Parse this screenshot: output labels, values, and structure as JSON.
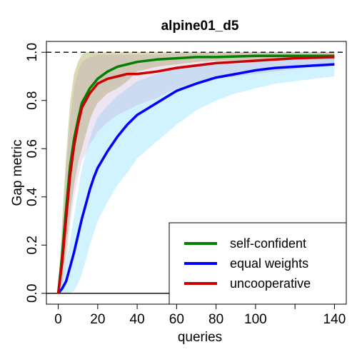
{
  "chart_data": {
    "type": "line",
    "title": "alpine01_d5",
    "xlabel": "queries",
    "ylabel": "Gap metric",
    "xlim": [
      -6,
      146
    ],
    "ylim": [
      -0.045,
      1.045
    ],
    "x_ticks": [
      0,
      20,
      40,
      60,
      80,
      100,
      140
    ],
    "x_tick_labels": [
      "0",
      "20",
      "40",
      "60",
      "80",
      "100",
      "140"
    ],
    "x_extra_tick_marks": [
      120
    ],
    "y_ticks": [
      0.0,
      0.2,
      0.4,
      0.6,
      0.8,
      1.0
    ],
    "y_tick_labels": [
      "0.0",
      "0.2",
      "0.4",
      "0.6",
      "0.8",
      "1.0"
    ],
    "reference_lines": [
      {
        "y": 1.0,
        "style": "dashed",
        "color": "#000000"
      },
      {
        "y": 0.0,
        "style": "solid",
        "color": "#000000"
      }
    ],
    "legend_position": "bottom-right",
    "series": [
      {
        "name": "self-confident",
        "color": "#008000",
        "band_color": "#808000",
        "band_opacity": 0.3,
        "x": [
          0,
          2,
          4,
          6,
          8,
          10,
          12,
          14,
          16,
          18,
          20,
          25,
          30,
          35,
          40,
          50,
          60,
          70,
          80,
          100,
          120,
          140
        ],
        "y": [
          0.0,
          0.16,
          0.35,
          0.53,
          0.64,
          0.72,
          0.79,
          0.82,
          0.85,
          0.87,
          0.89,
          0.92,
          0.94,
          0.95,
          0.96,
          0.97,
          0.975,
          0.98,
          0.98,
          0.985,
          0.985,
          0.985
        ],
        "lower": [
          0.0,
          0.05,
          0.18,
          0.33,
          0.45,
          0.54,
          0.6,
          0.66,
          0.72,
          0.76,
          0.79,
          0.83,
          0.85,
          0.88,
          0.92,
          0.94,
          0.95,
          0.96,
          0.965,
          0.97,
          0.97,
          0.97
        ],
        "upper": [
          0.0,
          0.3,
          0.57,
          0.79,
          0.91,
          0.96,
          0.99,
          1.0,
          1.0,
          1.0,
          1.0,
          1.0,
          1.0,
          1.0,
          1.0,
          1.0,
          1.0,
          1.0,
          1.0,
          1.0,
          1.0,
          1.0
        ]
      },
      {
        "name": "equal weights",
        "color": "#0000ff",
        "band_color": "#00bfff",
        "band_opacity": 0.18,
        "x": [
          0,
          2,
          4,
          6,
          8,
          10,
          12,
          14,
          16,
          18,
          20,
          25,
          30,
          35,
          40,
          50,
          60,
          70,
          80,
          90,
          100,
          110,
          120,
          130,
          140
        ],
        "y": [
          0.0,
          0.02,
          0.05,
          0.11,
          0.17,
          0.24,
          0.31,
          0.37,
          0.43,
          0.48,
          0.52,
          0.59,
          0.65,
          0.7,
          0.74,
          0.79,
          0.84,
          0.87,
          0.895,
          0.91,
          0.925,
          0.935,
          0.94,
          0.945,
          0.95
        ],
        "lower": [
          0.0,
          0.0,
          0.0,
          0.0,
          0.01,
          0.04,
          0.08,
          0.14,
          0.2,
          0.25,
          0.3,
          0.38,
          0.45,
          0.5,
          0.56,
          0.63,
          0.7,
          0.76,
          0.8,
          0.83,
          0.85,
          0.87,
          0.88,
          0.89,
          0.9
        ],
        "upper": [
          0.0,
          0.06,
          0.13,
          0.22,
          0.32,
          0.42,
          0.52,
          0.58,
          0.64,
          0.69,
          0.73,
          0.78,
          0.82,
          0.85,
          0.88,
          0.91,
          0.93,
          0.95,
          0.96,
          0.965,
          0.97,
          0.975,
          0.98,
          0.98,
          0.98
        ]
      },
      {
        "name": "uncooperative",
        "color": "#cc0000",
        "band_color": "#b388c2",
        "band_opacity": 0.22,
        "x": [
          0,
          2,
          4,
          6,
          8,
          10,
          12,
          14,
          16,
          18,
          20,
          25,
          30,
          35,
          40,
          50,
          60,
          70,
          80,
          100,
          120,
          140
        ],
        "y": [
          0.0,
          0.13,
          0.31,
          0.49,
          0.61,
          0.7,
          0.77,
          0.8,
          0.83,
          0.85,
          0.87,
          0.89,
          0.9,
          0.91,
          0.91,
          0.92,
          0.935,
          0.945,
          0.955,
          0.965,
          0.975,
          0.98
        ],
        "lower": [
          0.0,
          0.03,
          0.12,
          0.28,
          0.4,
          0.48,
          0.55,
          0.58,
          0.62,
          0.64,
          0.67,
          0.71,
          0.74,
          0.76,
          0.78,
          0.81,
          0.85,
          0.87,
          0.89,
          0.91,
          0.93,
          0.95
        ],
        "upper": [
          0.0,
          0.26,
          0.52,
          0.72,
          0.85,
          0.92,
          0.96,
          0.97,
          0.98,
          0.985,
          0.99,
          0.99,
          0.99,
          0.99,
          0.99,
          0.99,
          0.995,
          0.995,
          1.0,
          1.0,
          1.0,
          1.0
        ]
      }
    ]
  }
}
